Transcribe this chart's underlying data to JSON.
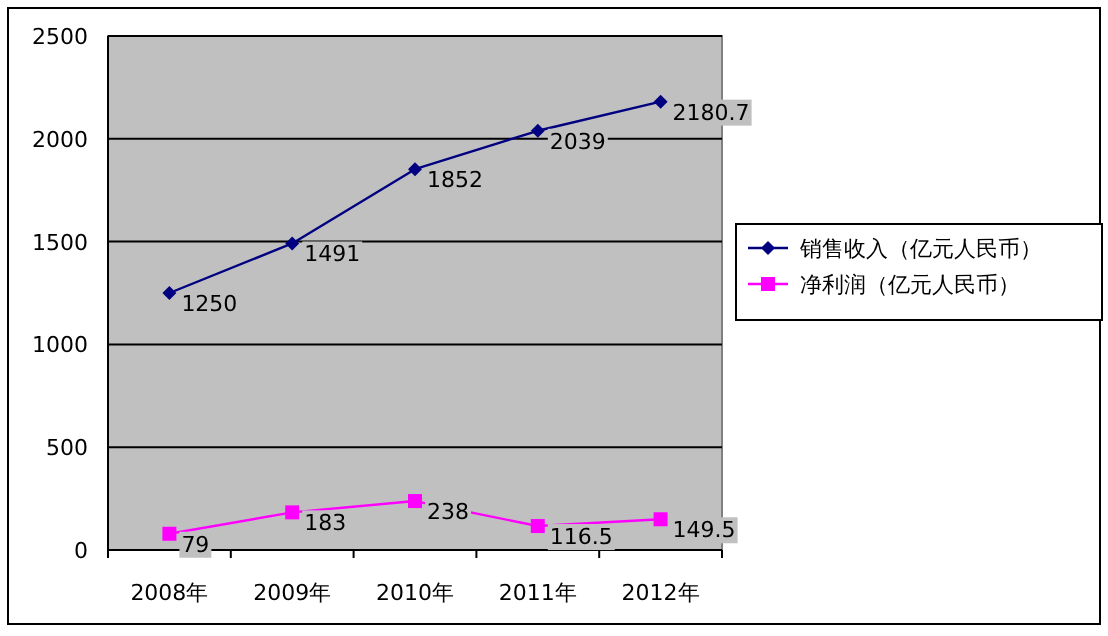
{
  "chart_data": {
    "type": "line",
    "categories": [
      "2008年",
      "2009年",
      "2010年",
      "2011年",
      "2012年"
    ],
    "series": [
      {
        "name": "销售收入（亿元人民币）",
        "color": "#000080",
        "marker": "diamond",
        "values": [
          1250,
          1491,
          1852,
          2039,
          2180.7
        ]
      },
      {
        "name": "净利润（亿元人民币）",
        "color": "#ff00ff",
        "marker": "square",
        "values": [
          79,
          183,
          238,
          116.5,
          149.5
        ]
      }
    ],
    "ylim": [
      0,
      2500
    ],
    "yticks": [
      0,
      500,
      1000,
      1500,
      2000,
      2500
    ],
    "grid": "y",
    "legend": "right",
    "data_labels": true
  }
}
